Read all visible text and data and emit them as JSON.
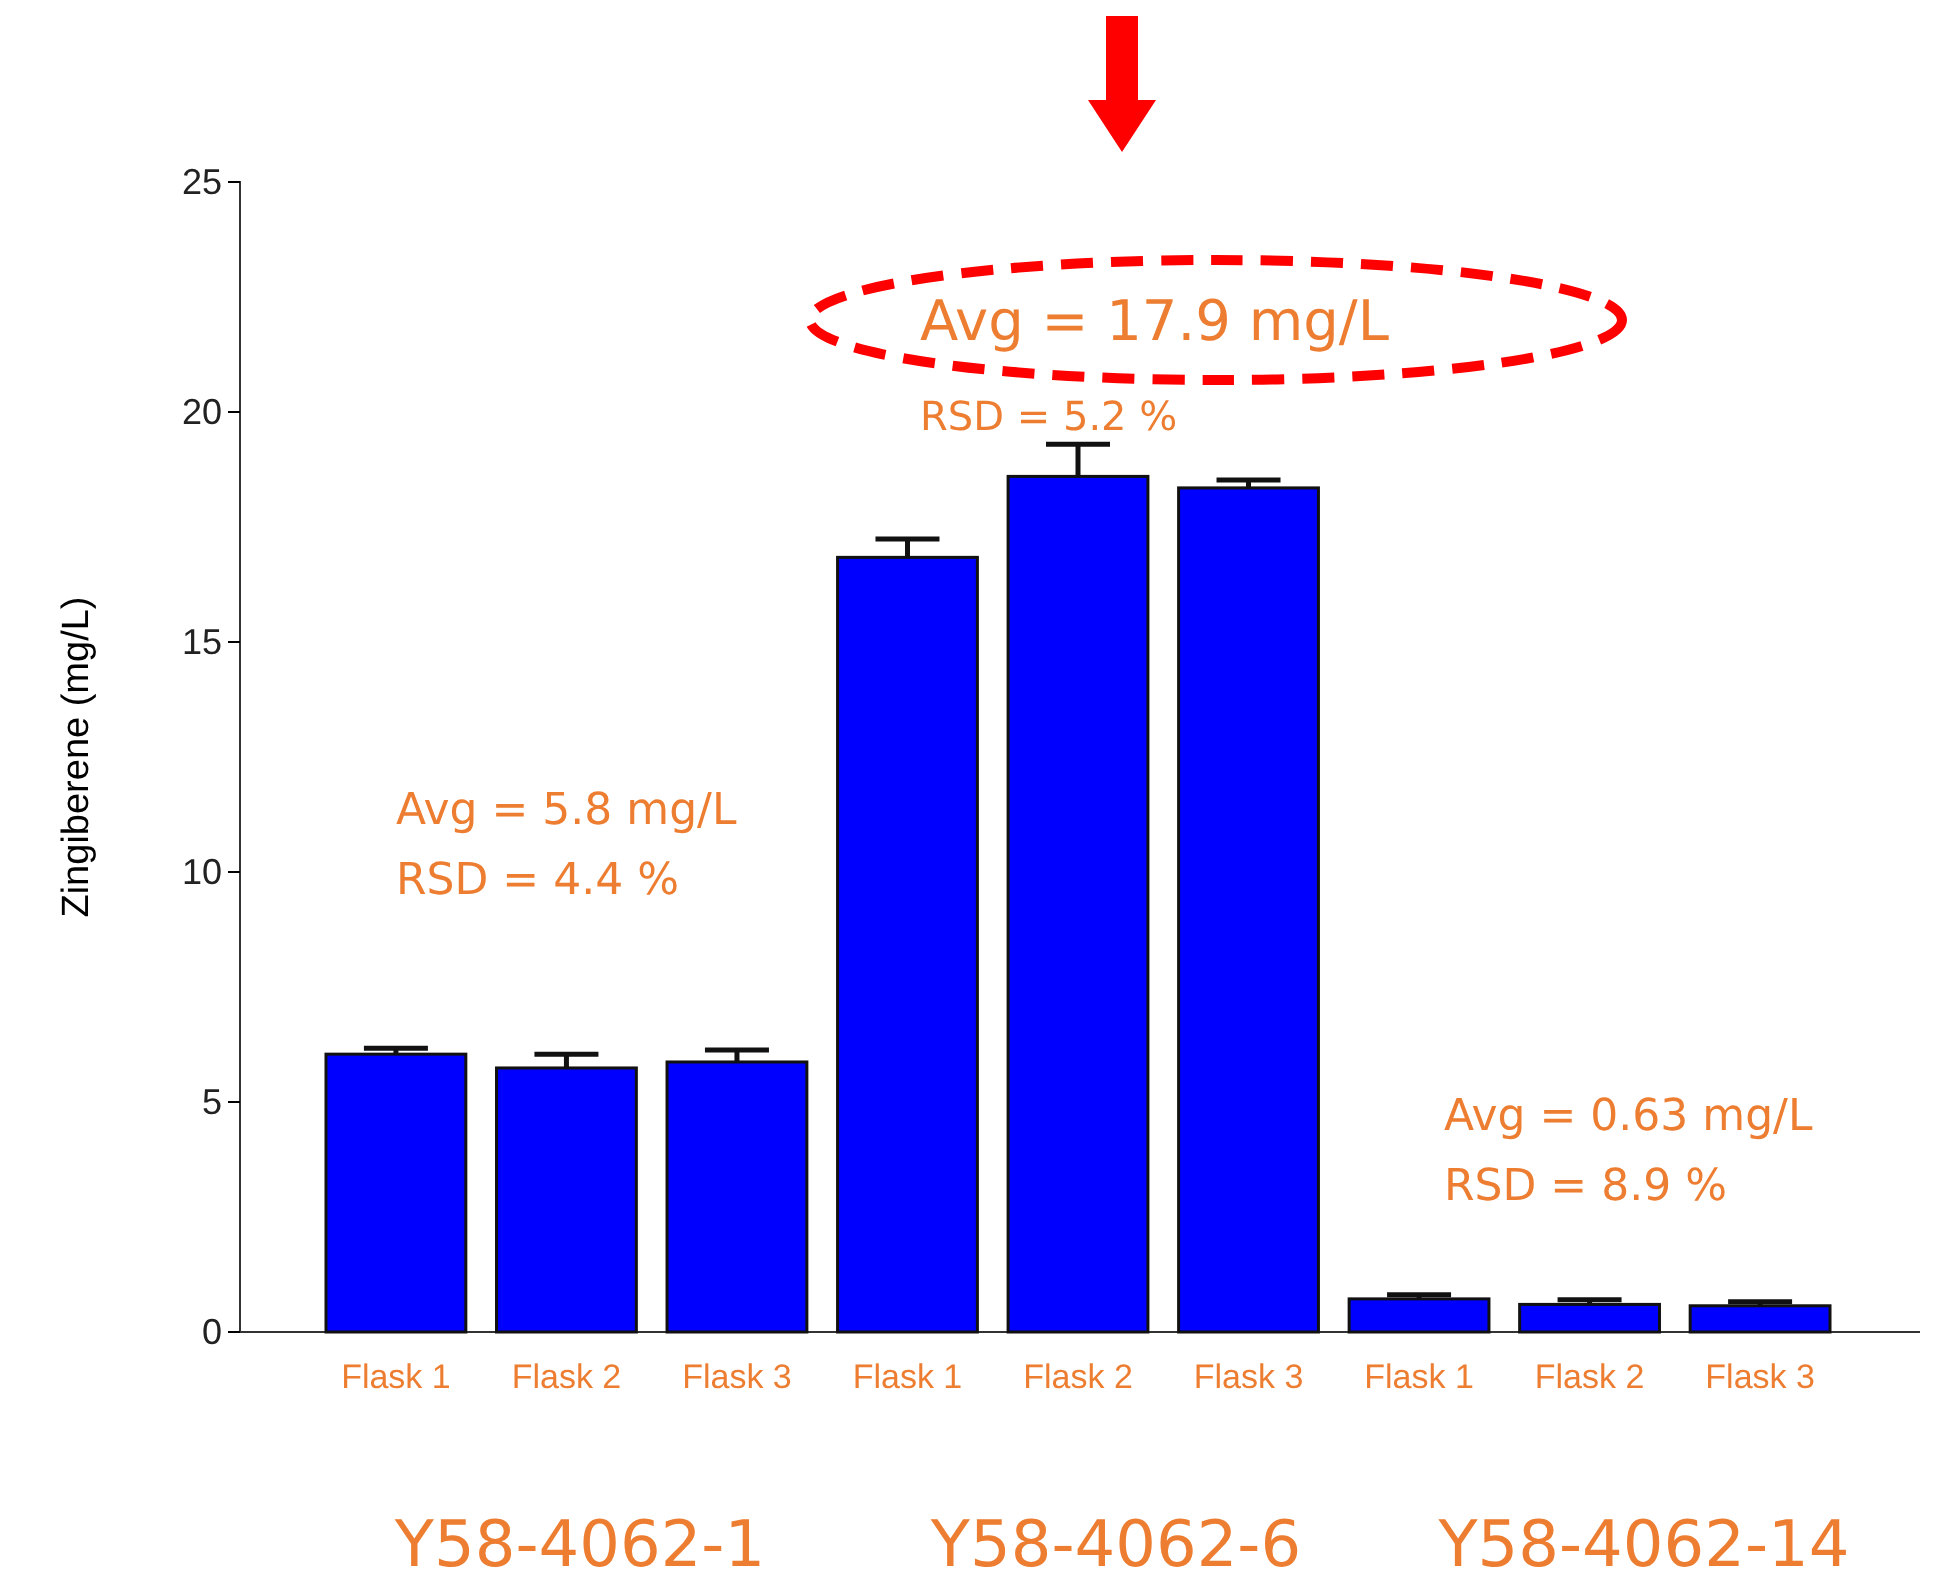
{
  "chart_data": {
    "type": "bar",
    "ylabel": "Zingiberene (mg/L)",
    "categories": [
      "Flask 1",
      "Flask 2",
      "Flask 3",
      "Flask 1",
      "Flask 2",
      "Flask 3",
      "Flask 1",
      "Flask 2",
      "Flask 3"
    ],
    "values": [
      6.04,
      5.74,
      5.87,
      16.84,
      18.6,
      18.35,
      0.72,
      0.6,
      0.57
    ],
    "errors": [
      [
        6.04,
        6.17
      ],
      [
        5.74,
        6.04
      ],
      [
        5.87,
        6.13
      ],
      [
        16.84,
        17.24
      ],
      [
        18.6,
        19.3
      ],
      [
        18.35,
        18.52
      ],
      [
        0.72,
        0.81
      ],
      [
        0.6,
        0.7
      ],
      [
        0.57,
        0.66
      ]
    ],
    "color": "#0000ff",
    "ylim": [
      0,
      25
    ],
    "yticks": [
      0,
      5,
      10,
      15,
      20,
      25
    ],
    "grid": false,
    "annotations": [
      "Avg = 5.8 mg/L",
      "RSD = 4.4 %",
      "Avg = 17.9 mg/L",
      "RSD = 5.2 %",
      "Avg = 0.63 mg/L",
      "RSD = 8.9 %",
      "Y58-4062-1",
      "Y58-4062-6",
      "Y58-4062-14"
    ]
  }
}
